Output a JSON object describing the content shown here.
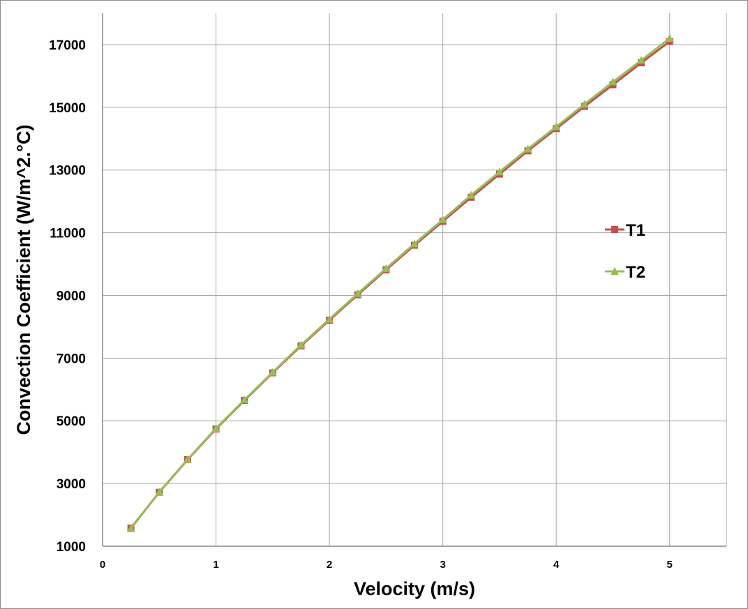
{
  "chart_data": {
    "type": "line",
    "title": "",
    "xlabel": "Velocity (m/s)",
    "ylabel": "Convection Coefficient (W/m^2.°C)",
    "xlim": [
      0,
      5.5
    ],
    "ylim": [
      1000,
      18000
    ],
    "x_ticks": [
      0,
      1,
      2,
      3,
      4,
      5
    ],
    "y_ticks": [
      1000,
      3000,
      5000,
      7000,
      9000,
      11000,
      13000,
      15000,
      17000
    ],
    "grid": true,
    "legend_position": "right",
    "x": [
      0.25,
      0.5,
      0.75,
      1.0,
      1.25,
      1.5,
      1.75,
      2.0,
      2.25,
      2.5,
      2.75,
      3.0,
      3.25,
      3.5,
      3.75,
      4.0,
      4.25,
      4.5,
      4.75,
      5.0
    ],
    "series": [
      {
        "name": "T1",
        "color": "#c0504d",
        "marker": "square",
        "values": [
          1580,
          2720,
          3760,
          4740,
          5650,
          6530,
          7390,
          8210,
          9020,
          9820,
          10600,
          11360,
          12130,
          12870,
          13610,
          14320,
          15030,
          15720,
          16420,
          17100
        ]
      },
      {
        "name": "T2",
        "color": "#9bbb59",
        "marker": "triangle",
        "values": [
          1560,
          2730,
          3770,
          4760,
          5670,
          6550,
          7420,
          8240,
          9060,
          9860,
          10650,
          11420,
          12200,
          12940,
          13670,
          14380,
          15100,
          15810,
          16500,
          17200
        ]
      }
    ]
  }
}
